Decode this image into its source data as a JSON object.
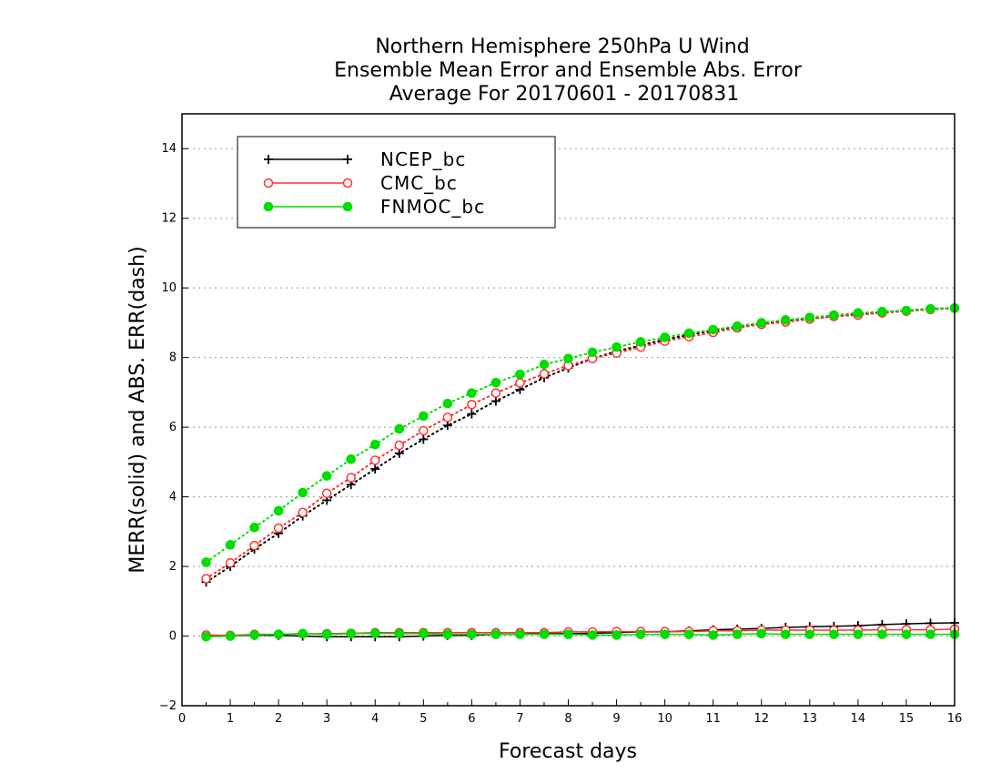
{
  "chart_data": {
    "type": "line",
    "title": [
      "Northern Hemisphere 250hPa U Wind",
      "Ensemble Mean Error and Ensemble Abs. Error",
      "Average For 20170601 - 20170831"
    ],
    "xlabel": "Forecast days",
    "ylabel": "MERR(solid) and ABS. ERR(dash)",
    "xlim": [
      0,
      16
    ],
    "ylim": [
      -2,
      15
    ],
    "xticks": [
      0,
      1,
      2,
      3,
      4,
      5,
      6,
      7,
      8,
      9,
      10,
      11,
      12,
      13,
      14,
      15,
      16
    ],
    "yticks": [
      -2,
      0,
      2,
      4,
      6,
      8,
      10,
      12,
      14
    ],
    "grid": "horizontal dotted",
    "legend_position": "top-left",
    "x": [
      0.5,
      1,
      1.5,
      2,
      2.5,
      3,
      3.5,
      4,
      4.5,
      5,
      5.5,
      6,
      6.5,
      7,
      7.5,
      8,
      8.5,
      9,
      9.5,
      10,
      10.5,
      11,
      11.5,
      12,
      12.5,
      13,
      13.5,
      14,
      14.5,
      15,
      15.5,
      16
    ],
    "series": [
      {
        "name": "NCEP_bc",
        "color": "#000000",
        "marker": "plus",
        "merr": [
          0.0,
          0.0,
          0.02,
          0.02,
          0.0,
          -0.02,
          -0.02,
          -0.02,
          -0.02,
          0.0,
          0.02,
          0.02,
          0.05,
          0.05,
          0.07,
          0.07,
          0.08,
          0.1,
          0.12,
          0.12,
          0.15,
          0.18,
          0.2,
          0.22,
          0.25,
          0.27,
          0.28,
          0.3,
          0.33,
          0.35,
          0.37,
          0.38
        ],
        "abs_err": [
          1.55,
          2.0,
          2.5,
          2.95,
          3.45,
          3.9,
          4.35,
          4.8,
          5.25,
          5.65,
          6.05,
          6.38,
          6.75,
          7.08,
          7.42,
          7.7,
          7.97,
          8.18,
          8.35,
          8.52,
          8.65,
          8.78,
          8.88,
          8.98,
          9.05,
          9.12,
          9.18,
          9.25,
          9.3,
          9.35,
          9.4,
          9.42
        ]
      },
      {
        "name": "CMC_bc",
        "color": "#ff3030",
        "marker": "open-circle",
        "merr": [
          0.03,
          0.02,
          0.05,
          0.05,
          0.07,
          0.07,
          0.08,
          0.1,
          0.1,
          0.1,
          0.1,
          0.1,
          0.1,
          0.1,
          0.1,
          0.12,
          0.12,
          0.13,
          0.13,
          0.13,
          0.13,
          0.15,
          0.15,
          0.17,
          0.17,
          0.17,
          0.17,
          0.17,
          0.18,
          0.18,
          0.18,
          0.2
        ],
        "abs_err": [
          1.65,
          2.1,
          2.6,
          3.1,
          3.55,
          4.1,
          4.55,
          5.05,
          5.48,
          5.9,
          6.28,
          6.65,
          6.98,
          7.27,
          7.53,
          7.77,
          7.97,
          8.13,
          8.3,
          8.47,
          8.6,
          8.72,
          8.85,
          8.95,
          9.02,
          9.1,
          9.18,
          9.22,
          9.28,
          9.33,
          9.38,
          9.42
        ]
      },
      {
        "name": "FNMOC_bc",
        "color": "#00dd00",
        "marker": "filled-circle",
        "merr": [
          -0.02,
          0.0,
          0.03,
          0.05,
          0.07,
          0.05,
          0.07,
          0.08,
          0.07,
          0.07,
          0.05,
          0.05,
          0.05,
          0.05,
          0.05,
          0.05,
          0.03,
          0.03,
          0.05,
          0.05,
          0.05,
          0.03,
          0.05,
          0.07,
          0.05,
          0.05,
          0.05,
          0.05,
          0.05,
          0.05,
          0.05,
          0.05
        ],
        "abs_err": [
          2.12,
          2.62,
          3.12,
          3.6,
          4.12,
          4.6,
          5.08,
          5.5,
          5.95,
          6.32,
          6.68,
          6.98,
          7.28,
          7.52,
          7.8,
          7.97,
          8.15,
          8.3,
          8.45,
          8.58,
          8.7,
          8.8,
          8.9,
          9.0,
          9.08,
          9.15,
          9.22,
          9.28,
          9.32,
          9.35,
          9.4,
          9.42
        ]
      }
    ]
  }
}
